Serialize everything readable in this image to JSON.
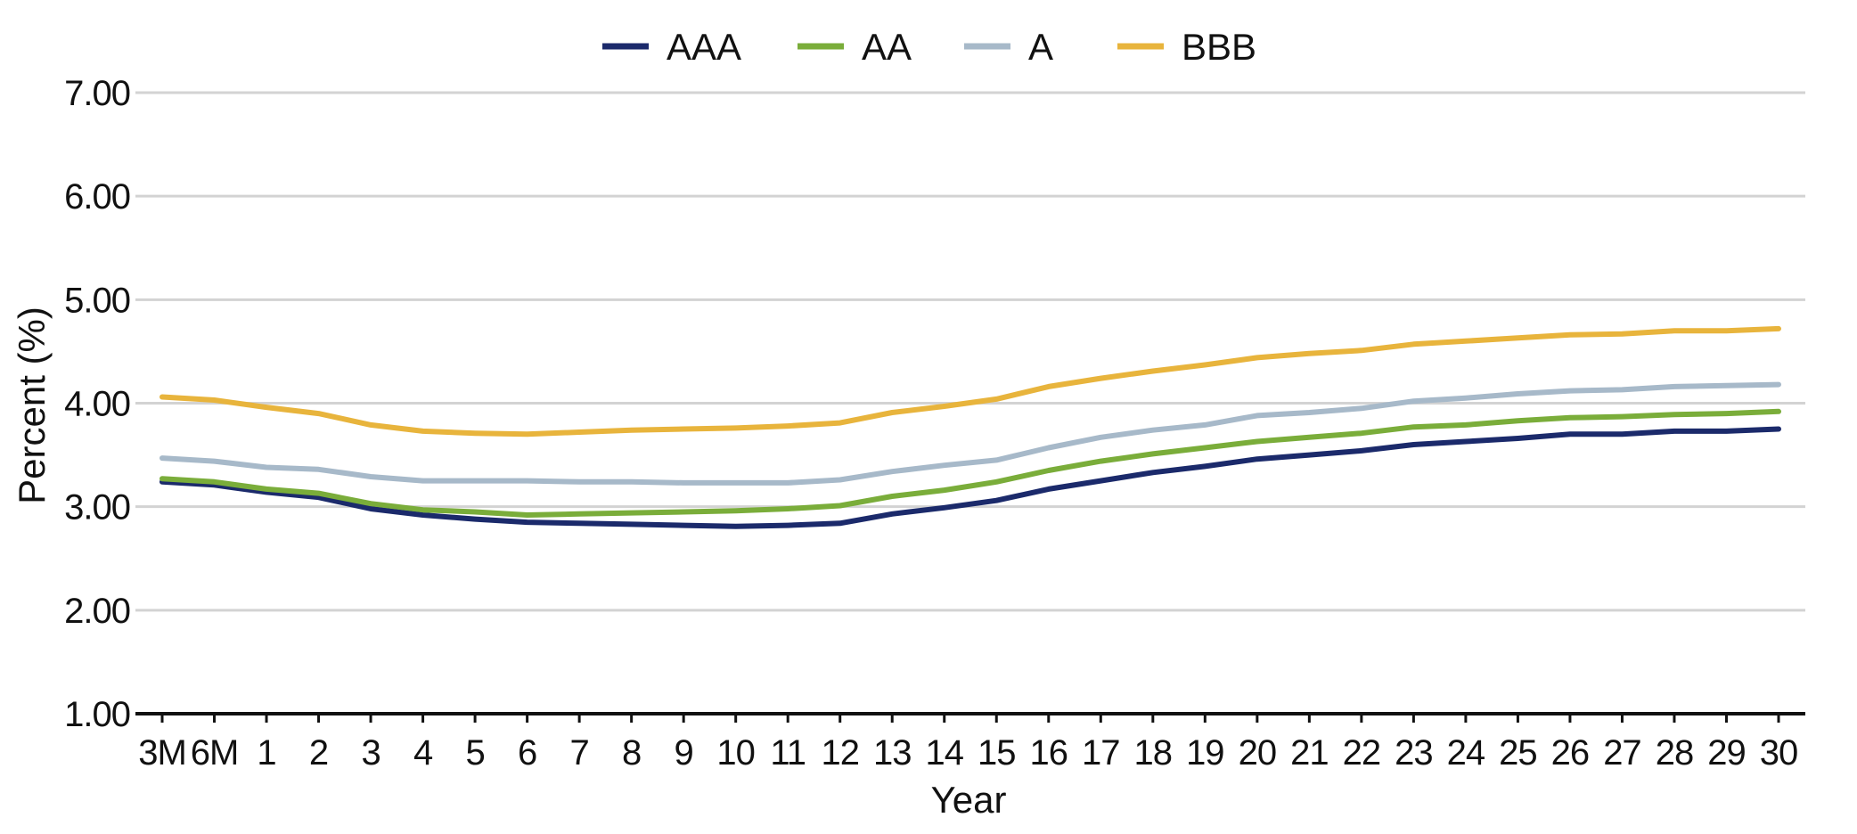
{
  "chart_data": {
    "type": "line",
    "title": "",
    "xlabel": "Year",
    "ylabel": "Percent (%)",
    "ylim": [
      1,
      7
    ],
    "yticks": [
      "1.00",
      "2.00",
      "3.00",
      "4.00",
      "5.00",
      "6.00",
      "7.00"
    ],
    "categories": [
      "3M",
      "6M",
      "1",
      "2",
      "3",
      "4",
      "5",
      "6",
      "7",
      "8",
      "9",
      "10",
      "11",
      "12",
      "13",
      "14",
      "15",
      "16",
      "17",
      "18",
      "19",
      "20",
      "21",
      "22",
      "23",
      "24",
      "25",
      "26",
      "27",
      "28",
      "29",
      "30"
    ],
    "grid": true,
    "legend_position": "top-center",
    "series": [
      {
        "name": "AAA",
        "color": "#1b2a6b",
        "values": [
          3.24,
          3.21,
          3.14,
          3.09,
          2.98,
          2.92,
          2.88,
          2.85,
          2.84,
          2.83,
          2.82,
          2.81,
          2.82,
          2.84,
          2.93,
          2.99,
          3.06,
          3.17,
          3.25,
          3.33,
          3.39,
          3.46,
          3.5,
          3.54,
          3.6,
          3.63,
          3.66,
          3.7,
          3.7,
          3.73,
          3.73,
          3.75
        ]
      },
      {
        "name": "AA",
        "color": "#7aad3a",
        "values": [
          3.27,
          3.24,
          3.17,
          3.13,
          3.03,
          2.97,
          2.95,
          2.92,
          2.93,
          2.94,
          2.95,
          2.96,
          2.98,
          3.01,
          3.1,
          3.16,
          3.24,
          3.35,
          3.44,
          3.51,
          3.57,
          3.63,
          3.67,
          3.71,
          3.77,
          3.79,
          3.83,
          3.86,
          3.87,
          3.89,
          3.9,
          3.92
        ]
      },
      {
        "name": "A",
        "color": "#a7b9c9",
        "values": [
          3.47,
          3.44,
          3.38,
          3.36,
          3.29,
          3.25,
          3.25,
          3.25,
          3.24,
          3.24,
          3.23,
          3.23,
          3.23,
          3.26,
          3.34,
          3.4,
          3.45,
          3.57,
          3.67,
          3.74,
          3.79,
          3.88,
          3.91,
          3.95,
          4.02,
          4.05,
          4.09,
          4.12,
          4.13,
          4.16,
          4.17,
          4.18
        ]
      },
      {
        "name": "BBB",
        "color": "#e8b43c",
        "values": [
          4.06,
          4.03,
          3.96,
          3.9,
          3.79,
          3.73,
          3.71,
          3.7,
          3.72,
          3.74,
          3.75,
          3.76,
          3.78,
          3.81,
          3.91,
          3.97,
          4.04,
          4.16,
          4.24,
          4.31,
          4.37,
          4.44,
          4.48,
          4.51,
          4.57,
          4.6,
          4.63,
          4.66,
          4.67,
          4.7,
          4.7,
          4.72
        ]
      }
    ]
  }
}
